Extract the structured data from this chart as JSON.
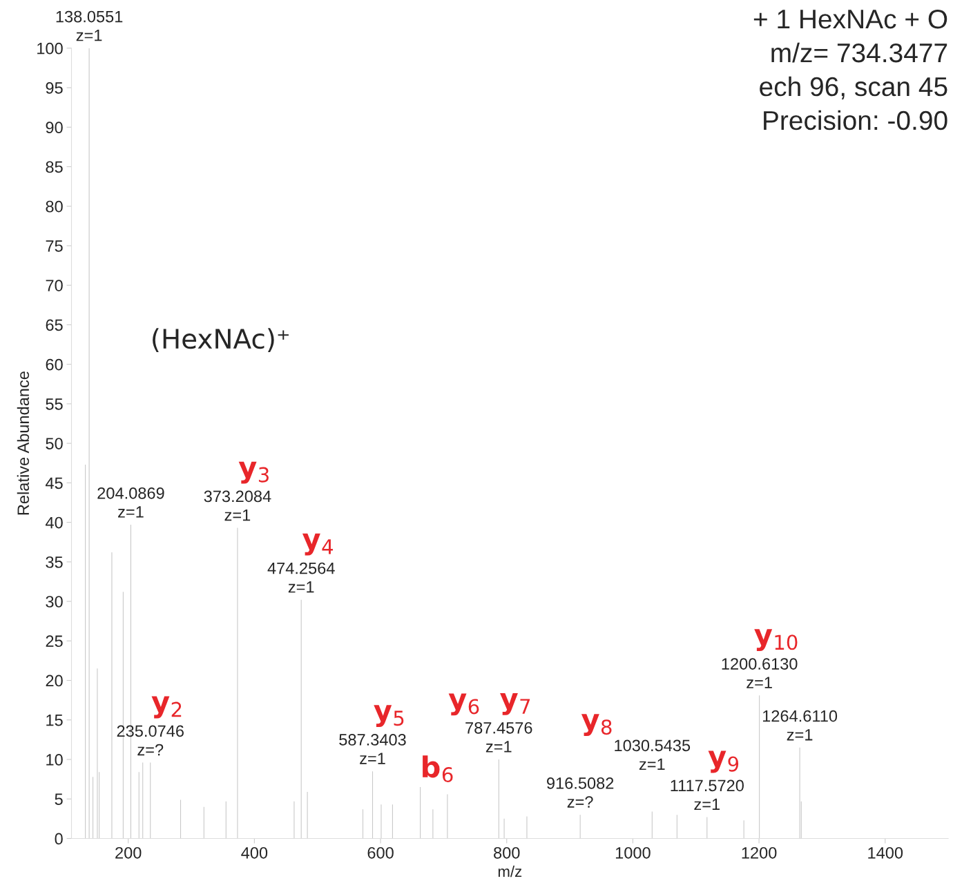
{
  "chart_data": {
    "type": "bar",
    "xlabel": "m/z",
    "ylabel": "Relative Abundance",
    "x": [
      132,
      138.0551,
      144,
      151,
      154,
      174,
      192,
      204.0869,
      217,
      223,
      235.0746,
      283,
      320,
      355,
      373.2084,
      463,
      474.2564,
      484,
      572,
      587.3403,
      601,
      619,
      663,
      683,
      706,
      787.4576,
      796,
      832,
      916.5082,
      1030.5435,
      1070,
      1117.572,
      1176,
      1200.613,
      1264.611,
      1267
    ],
    "values": [
      47.3,
      100,
      7.8,
      21.5,
      8.4,
      36.2,
      31.2,
      39.7,
      8.4,
      9.6,
      9.6,
      4.9,
      4.0,
      4.7,
      39.3,
      4.7,
      30.2,
      5.9,
      3.7,
      8.5,
      4.3,
      4.3,
      6.5,
      3.7,
      5.6,
      10.0,
      2.5,
      2.8,
      3.0,
      3.4,
      3.0,
      2.7,
      2.3,
      18.1,
      11.5,
      4.7
    ],
    "color": "#c8c8c8",
    "xlim": [
      110,
      1500
    ],
    "xticks": [
      200,
      400,
      600,
      800,
      1000,
      1200,
      1400
    ],
    "ylim": [
      0,
      100
    ],
    "yticks": [
      0,
      5,
      10,
      15,
      20,
      25,
      30,
      35,
      40,
      45,
      50,
      55,
      60,
      65,
      70,
      75,
      80,
      85,
      90,
      95,
      100
    ],
    "grid": false,
    "annotations": [
      {
        "text": "138.0551\nz=1",
        "x": 138.0551,
        "y": 100
      },
      {
        "text": "204.0869\nz=1",
        "x": 204.0869,
        "y": 39.7
      },
      {
        "text": "373.2084\nz=1",
        "x": 373.2084,
        "y": 39.3
      },
      {
        "text": "474.2564\nz=1",
        "x": 474.2564,
        "y": 30.2
      },
      {
        "text": "235.0746\nz=?",
        "x": 235.0746,
        "y": 9.6
      },
      {
        "text": "587.3403\nz=1",
        "x": 587.3403,
        "y": 8.5
      },
      {
        "text": "787.4576\nz=1",
        "x": 787.4576,
        "y": 10.0
      },
      {
        "text": "916.5082\nz=?",
        "x": 916.5082,
        "y": 3.0
      },
      {
        "text": "1030.5435\nz=1",
        "x": 1030.5435,
        "y": 3.4
      },
      {
        "text": "1117.5720\nz=1",
        "x": 1117.572,
        "y": 2.7
      },
      {
        "text": "1200.6130\nz=1",
        "x": 1200.613,
        "y": 18.1
      },
      {
        "text": "1264.6110\nz=1",
        "x": 1264.611,
        "y": 11.5
      },
      "(HexNAc)⁺",
      {
        "text": "y$_{2}$",
        "x": 235.0746,
        "y": 9.6
      },
      {
        "text": "y$_{3}$",
        "x": 373.2084,
        "y": 39.3
      },
      {
        "text": "y$_{4}$",
        "x": 474.2564,
        "y": 30.2
      },
      {
        "text": "y$_{5}$",
        "x": 587.3403,
        "y": 8.5
      },
      {
        "text": "b$_{6}$",
        "x": 663,
        "y": 6.5
      },
      {
        "text": "y$_{6}$",
        "x": 706,
        "y": 5.6
      },
      {
        "text": "y$_{7}$",
        "x": 787.4576,
        "y": 10.0
      },
      {
        "text": "y$_{8}$",
        "x": 916.5082,
        "y": 3.0
      },
      {
        "text": "y$_{9}$",
        "x": 1117.572,
        "y": 2.7
      },
      {
        "text": "y$_{10}$",
        "x": 1200.613,
        "y": 18.1
      },
      "+ 1 HexNAc + O\nm/z= 734.3477\nech 96, scan 45\nPrecision: -0.90"
    ]
  }
}
